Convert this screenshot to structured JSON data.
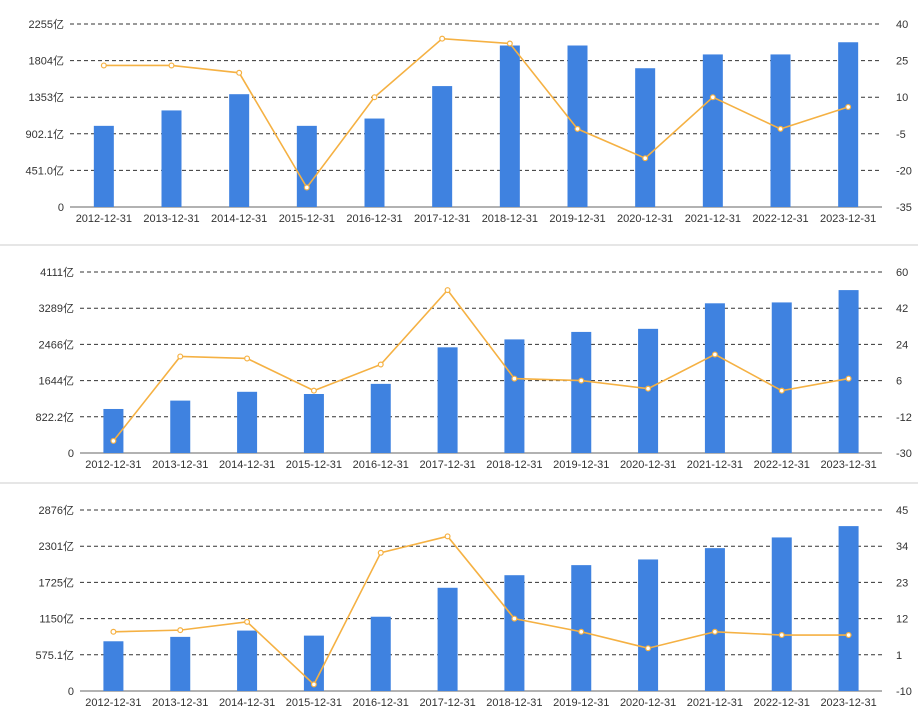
{
  "colors": {
    "bar": "#3f82e0",
    "line": "#f5b143",
    "grid": "#333333",
    "text": "#333333"
  },
  "chart_data": [
    {
      "type": "bar",
      "categories": [
        "2012-12-31",
        "2013-12-31",
        "2014-12-31",
        "2015-12-31",
        "2016-12-31",
        "2017-12-31",
        "2018-12-31",
        "2019-12-31",
        "2020-12-31",
        "2021-12-31",
        "2022-12-31",
        "2023-12-31"
      ],
      "series": [
        {
          "type": "bar",
          "axis": "left",
          "values": [
            1000,
            1190,
            1390,
            1000,
            1090,
            1490,
            1990,
            1990,
            1710,
            1880,
            1880,
            2030
          ]
        },
        {
          "type": "line",
          "axis": "right",
          "values": [
            23,
            23,
            20,
            -27,
            10,
            34,
            32,
            -3,
            -15,
            10,
            -3,
            6
          ]
        }
      ],
      "left_axis": {
        "ticks": [
          0,
          451,
          902.1,
          1353,
          1804,
          2255
        ],
        "tick_labels": [
          "0",
          "451.0亿",
          "902.1亿",
          "1353亿",
          "1804亿",
          "2255亿"
        ]
      },
      "right_axis": {
        "min": -35,
        "max": 40,
        "tick_labels": [
          "-35",
          "-20",
          "-5",
          "10",
          "25",
          "40"
        ]
      },
      "grid": true,
      "grid_style": "dashed"
    },
    {
      "type": "bar",
      "categories": [
        "2012-12-31",
        "2013-12-31",
        "2014-12-31",
        "2015-12-31",
        "2016-12-31",
        "2017-12-31",
        "2018-12-31",
        "2019-12-31",
        "2020-12-31",
        "2021-12-31",
        "2022-12-31",
        "2023-12-31"
      ],
      "series": [
        {
          "type": "bar",
          "axis": "left",
          "values": [
            1000,
            1190,
            1390,
            1340,
            1570,
            2400,
            2580,
            2750,
            2820,
            3400,
            3420,
            3700
          ]
        },
        {
          "type": "line",
          "axis": "right",
          "values": [
            -24,
            18,
            17,
            1,
            14,
            51,
            7,
            6,
            2,
            19,
            1,
            7
          ]
        }
      ],
      "left_axis": {
        "ticks": [
          0,
          822.2,
          1644,
          2466,
          3289,
          4111
        ],
        "tick_labels": [
          "0",
          "822.2亿",
          "1644亿",
          "2466亿",
          "3289亿",
          "4111亿"
        ]
      },
      "right_axis": {
        "min": -30,
        "max": 60,
        "tick_labels": [
          "-30",
          "-12",
          "6",
          "24",
          "42",
          "60"
        ]
      },
      "grid": true,
      "grid_style": "dashed"
    },
    {
      "type": "bar",
      "categories": [
        "2012-12-31",
        "2013-12-31",
        "2014-12-31",
        "2015-12-31",
        "2016-12-31",
        "2017-12-31",
        "2018-12-31",
        "2019-12-31",
        "2020-12-31",
        "2021-12-31",
        "2022-12-31",
        "2023-12-31"
      ],
      "series": [
        {
          "type": "bar",
          "axis": "left",
          "values": [
            790,
            860,
            960,
            880,
            1180,
            1640,
            1840,
            2000,
            2090,
            2270,
            2440,
            2620
          ]
        },
        {
          "type": "line",
          "axis": "right",
          "values": [
            8,
            8.5,
            11,
            -8,
            32,
            37,
            12,
            8,
            3,
            8,
            7,
            7
          ]
        }
      ],
      "left_axis": {
        "ticks": [
          0,
          575.1,
          1150,
          1725,
          2301,
          2876
        ],
        "tick_labels": [
          "0",
          "575.1亿",
          "1150亿",
          "1725亿",
          "2301亿",
          "2876亿"
        ]
      },
      "right_axis": {
        "min": -10,
        "max": 45,
        "tick_labels": [
          "-10",
          "1",
          "12",
          "23",
          "34",
          "45"
        ]
      },
      "grid": true,
      "grid_style": "dashed"
    }
  ]
}
